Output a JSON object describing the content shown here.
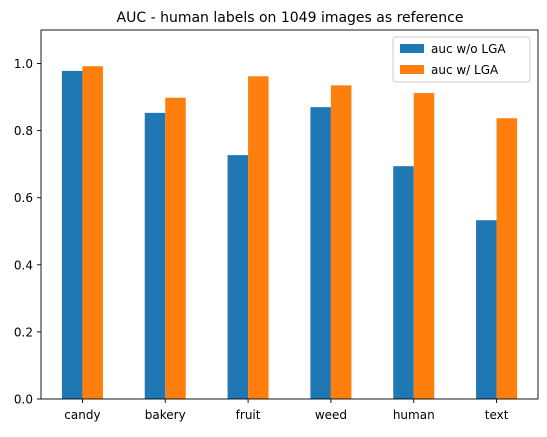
{
  "chart_data": {
    "type": "bar",
    "title": "AUC - human labels on 1049 images as reference",
    "xlabel": "",
    "ylabel": "",
    "categories": [
      "candy",
      "bakery",
      "fruit",
      "weed",
      "human",
      "text"
    ],
    "series": [
      {
        "name": "auc w/o LGA",
        "color": "#1f77b4",
        "values": [
          0.978,
          0.853,
          0.727,
          0.87,
          0.694,
          0.533
        ]
      },
      {
        "name": "auc w/ LGA",
        "color": "#ff7f0e",
        "values": [
          0.992,
          0.898,
          0.962,
          0.935,
          0.912,
          0.837
        ]
      }
    ],
    "ylim": [
      0,
      1.1
    ],
    "yticks": [
      "0.0",
      "0.2",
      "0.4",
      "0.6",
      "0.8",
      "1.0"
    ],
    "grid": false,
    "legend_position": "top-right"
  }
}
